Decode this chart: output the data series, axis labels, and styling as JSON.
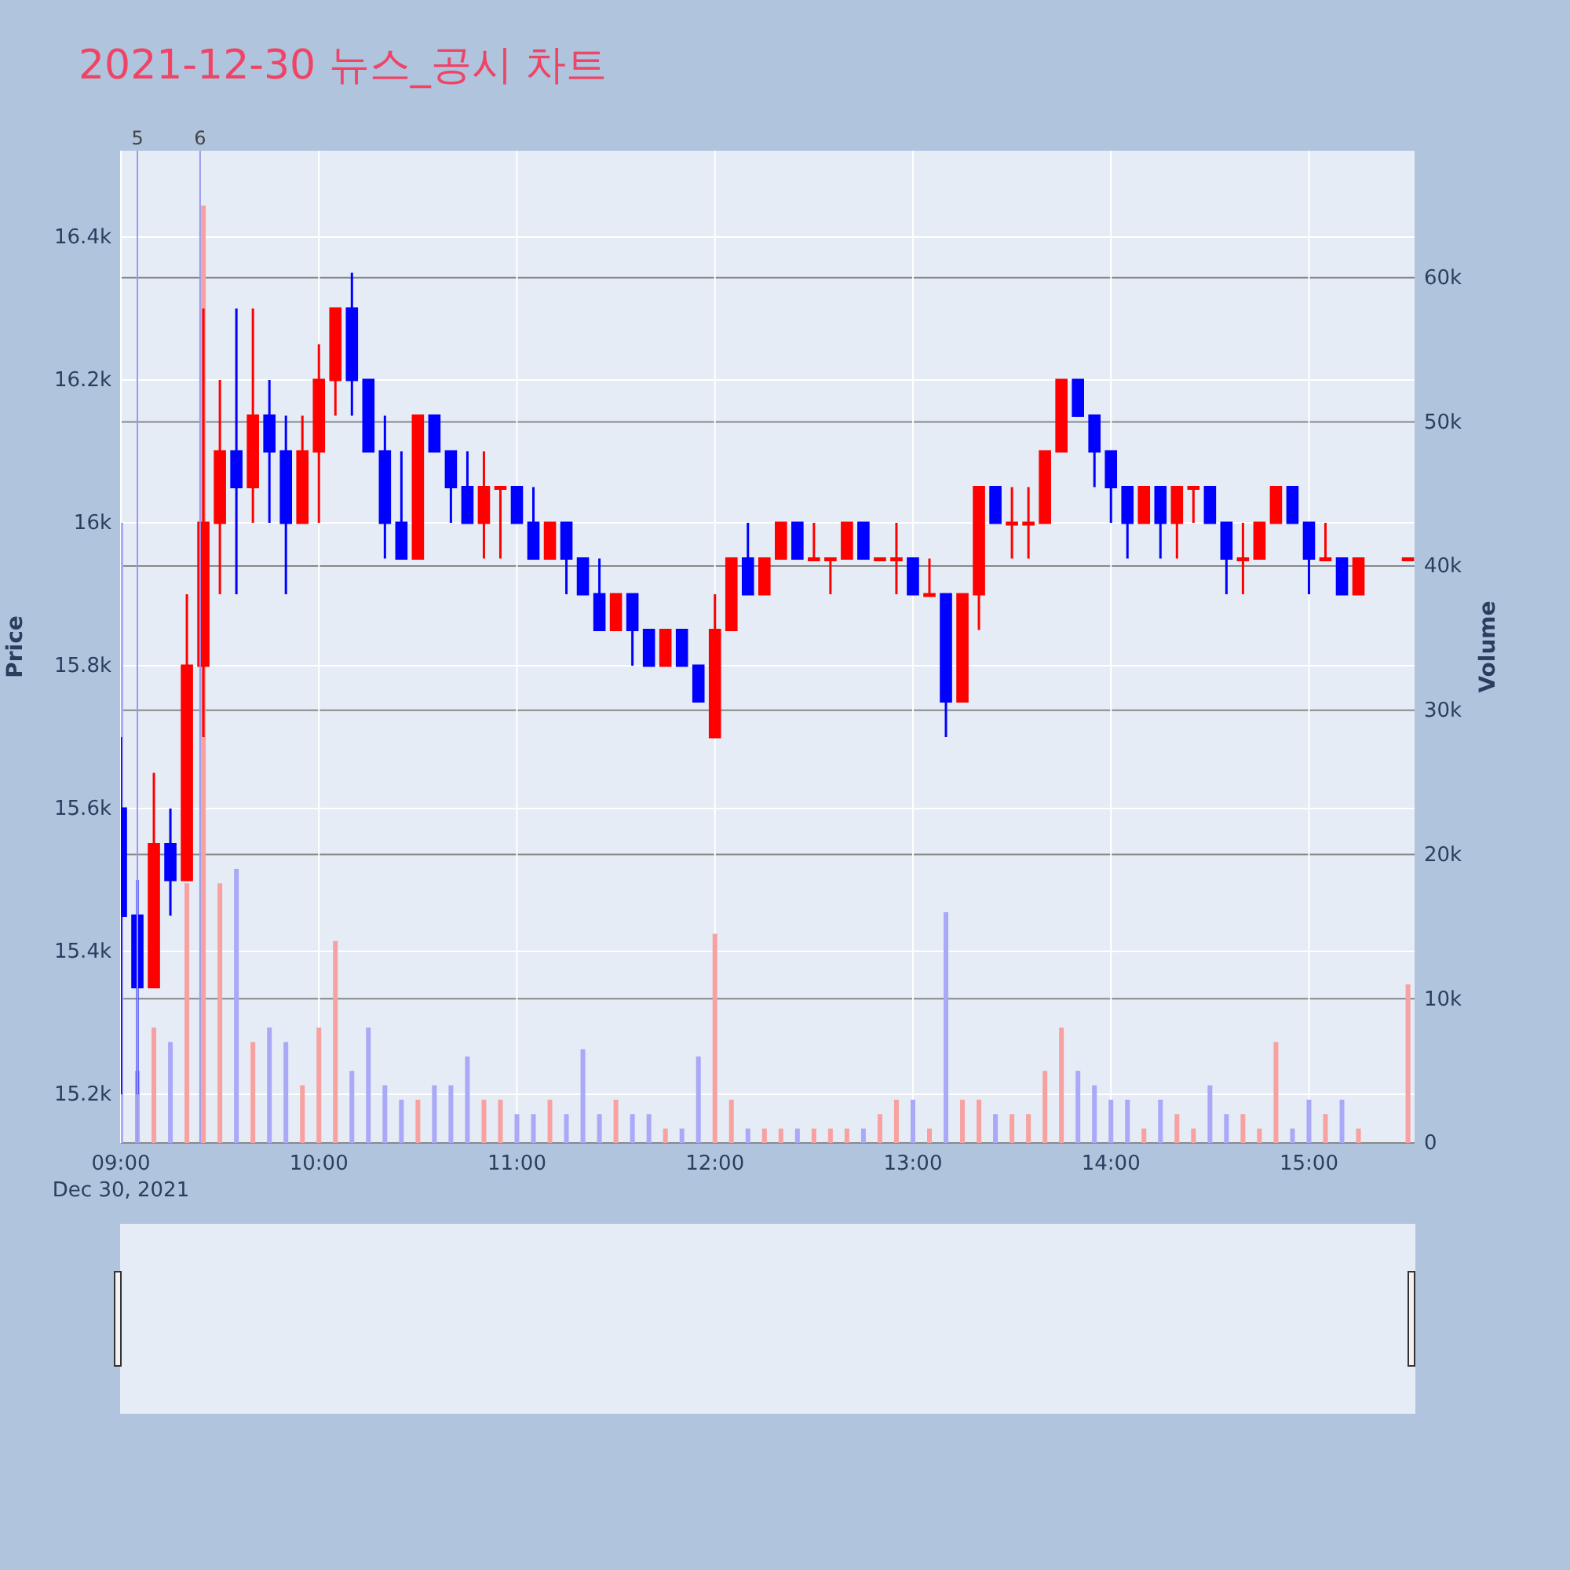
{
  "chart_data": {
    "type": "candlestick",
    "title": "2021-12-30 뉴스_공시 차트",
    "ylabel": "Price",
    "y2label": "Volume",
    "annotations": [
      "Dec 30, 2021"
    ],
    "xlim": [
      "2021-12-30T09:00",
      "2021-12-30T15:32"
    ],
    "xticks": [
      {
        "value": "2021-12-30T09:00",
        "label": "09:00"
      },
      {
        "value": "2021-12-30T10:00",
        "label": "10:00"
      },
      {
        "value": "2021-12-30T11:00",
        "label": "11:00"
      },
      {
        "value": "2021-12-30T12:00",
        "label": "12:00"
      },
      {
        "value": "2021-12-30T13:00",
        "label": "13:00"
      },
      {
        "value": "2021-12-30T14:00",
        "label": "14:00"
      },
      {
        "value": "2021-12-30T15:00",
        "label": "15:00"
      }
    ],
    "ylim": [
      15132,
      16521
    ],
    "yticks": [
      {
        "value": 15200,
        "label": "15.2k"
      },
      {
        "value": 15400,
        "label": "15.4k"
      },
      {
        "value": 15600,
        "label": "15.6k"
      },
      {
        "value": 15800,
        "label": "15.8k"
      },
      {
        "value": 16000,
        "label": "16k"
      },
      {
        "value": 16200,
        "label": "16.2k"
      },
      {
        "value": 16400,
        "label": "16.4k"
      }
    ],
    "y2lim": [
      0,
      68800
    ],
    "y2ticks": [
      0,
      {
        "value": 10000,
        "label": "10k"
      },
      {
        "value": 20000,
        "label": "20k"
      },
      {
        "value": 30000,
        "label": "30k"
      },
      {
        "value": 40000,
        "label": "40k"
      },
      {
        "value": 50000,
        "label": "50k"
      },
      {
        "value": 60000,
        "label": "60k"
      }
    ],
    "grid": true,
    "ref_lines": [
      {
        "axis": "x",
        "value": "2021-12-30T09:05",
        "label": "5",
        "color": "#9999ee"
      },
      {
        "axis": "x",
        "value": "2021-12-30T09:24",
        "label": "6",
        "color": "#9999ee"
      }
    ],
    "series": [
      {
        "type": "bar",
        "axis": "y2",
        "x": [
          "2021-12-30T09:00",
          "2021-12-30T09:05",
          "2021-12-30T09:10",
          "2021-12-30T09:15",
          "2021-12-30T09:20",
          "2021-12-30T09:25",
          "2021-12-30T09:30",
          "2021-12-30T09:35",
          "2021-12-30T09:40",
          "2021-12-30T09:45",
          "2021-12-30T09:50",
          "2021-12-30T09:55",
          "2021-12-30T10:00",
          "2021-12-30T10:05",
          "2021-12-30T10:10",
          "2021-12-30T10:15",
          "2021-12-30T10:20",
          "2021-12-30T10:25",
          "2021-12-30T10:30",
          "2021-12-30T10:35",
          "2021-12-30T10:40",
          "2021-12-30T10:45",
          "2021-12-30T10:50",
          "2021-12-30T10:55",
          "2021-12-30T11:00",
          "2021-12-30T11:05",
          "2021-12-30T11:10",
          "2021-12-30T11:15",
          "2021-12-30T11:20",
          "2021-12-30T11:25",
          "2021-12-30T11:30",
          "2021-12-30T11:35",
          "2021-12-30T11:40",
          "2021-12-30T11:45",
          "2021-12-30T11:50",
          "2021-12-30T11:55",
          "2021-12-30T12:00",
          "2021-12-30T12:05",
          "2021-12-30T12:10",
          "2021-12-30T12:15",
          "2021-12-30T12:20",
          "2021-12-30T12:25",
          "2021-12-30T12:30",
          "2021-12-30T12:35",
          "2021-12-30T12:40",
          "2021-12-30T12:45",
          "2021-12-30T12:50",
          "2021-12-30T12:55",
          "2021-12-30T13:00",
          "2021-12-30T13:05",
          "2021-12-30T13:10",
          "2021-12-30T13:15",
          "2021-12-30T13:20",
          "2021-12-30T13:25",
          "2021-12-30T13:30",
          "2021-12-30T13:35",
          "2021-12-30T13:40",
          "2021-12-30T13:45",
          "2021-12-30T13:50",
          "2021-12-30T13:55",
          "2021-12-30T14:00",
          "2021-12-30T14:05",
          "2021-12-30T14:10",
          "2021-12-30T14:15",
          "2021-12-30T14:20",
          "2021-12-30T14:25",
          "2021-12-30T14:30",
          "2021-12-30T14:35",
          "2021-12-30T14:40",
          "2021-12-30T14:45",
          "2021-12-30T14:50",
          "2021-12-30T14:55",
          "2021-12-30T15:00",
          "2021-12-30T15:05",
          "2021-12-30T15:10",
          "2021-12-30T15:15",
          "2021-12-30T15:30"
        ],
        "values": [
          43000,
          5000,
          8000,
          7000,
          18000,
          65000,
          18000,
          19000,
          7000,
          8000,
          7000,
          4000,
          8000,
          14000,
          5000,
          8000,
          4000,
          3000,
          3000,
          4000,
          4000,
          6000,
          3000,
          3000,
          2000,
          2000,
          3000,
          2000,
          6500,
          2000,
          3000,
          2000,
          2000,
          1000,
          1000,
          6000,
          14500,
          3000,
          1000,
          1000,
          1000,
          1000,
          1000,
          1000,
          1000,
          1000,
          2000,
          3000,
          3000,
          1000,
          16000,
          3000,
          3000,
          2000,
          2000,
          2000,
          5000,
          8000,
          5000,
          4000,
          3000,
          3000,
          1000,
          3000,
          2000,
          1000,
          4000,
          2000,
          2000,
          1000,
          7000,
          1000,
          3000,
          2000,
          3000,
          1000,
          11000
        ],
        "colors": [
          "#a9a9f7",
          "#a9a9f7",
          "#f7a1a1",
          "#a9a9f7",
          "#f7a1a1",
          "#f7a1a1",
          "#f7a1a1",
          "#a9a9f7",
          "#f7a1a1",
          "#a9a9f7",
          "#a9a9f7",
          "#f7a1a1",
          "#f7a1a1",
          "#f7a1a1",
          "#a9a9f7",
          "#a9a9f7",
          "#a9a9f7",
          "#a9a9f7",
          "#f7a1a1",
          "#a9a9f7",
          "#a9a9f7",
          "#a9a9f7",
          "#f7a1a1",
          "#f7a1a1",
          "#a9a9f7",
          "#a9a9f7",
          "#f7a1a1",
          "#a9a9f7",
          "#a9a9f7",
          "#a9a9f7",
          "#f7a1a1",
          "#a9a9f7",
          "#a9a9f7",
          "#f7a1a1",
          "#a9a9f7",
          "#a9a9f7",
          "#f7a1a1",
          "#f7a1a1",
          "#a9a9f7",
          "#f7a1a1",
          "#f7a1a1",
          "#a9a9f7",
          "#f7a1a1",
          "#f7a1a1",
          "#f7a1a1",
          "#a9a9f7",
          "#f7a1a1",
          "#f7a1a1",
          "#a9a9f7",
          "#f7a1a1",
          "#a9a9f7",
          "#f7a1a1",
          "#f7a1a1",
          "#a9a9f7",
          "#f7a1a1",
          "#f7a1a1",
          "#f7a1a1",
          "#f7a1a1",
          "#a9a9f7",
          "#a9a9f7",
          "#a9a9f7",
          "#a9a9f7",
          "#f7a1a1",
          "#a9a9f7",
          "#f7a1a1",
          "#f7a1a1",
          "#a9a9f7",
          "#a9a9f7",
          "#f7a1a1",
          "#f7a1a1",
          "#f7a1a1",
          "#a9a9f7",
          "#a9a9f7",
          "#f7a1a1",
          "#a9a9f7",
          "#f7a1a1",
          "#f7a1a1"
        ]
      },
      {
        "x": [
          "2021-12-30T09:00",
          "2021-12-30T09:05",
          "2021-12-30T09:10",
          "2021-12-30T09:15",
          "2021-12-30T09:20",
          "2021-12-30T09:25",
          "2021-12-30T09:30",
          "2021-12-30T09:35",
          "2021-12-30T09:40",
          "2021-12-30T09:45",
          "2021-12-30T09:50",
          "2021-12-30T09:55",
          "2021-12-30T10:00",
          "2021-12-30T10:05",
          "2021-12-30T10:10",
          "2021-12-30T10:15",
          "2021-12-30T10:20",
          "2021-12-30T10:25",
          "2021-12-30T10:30",
          "2021-12-30T10:35",
          "2021-12-30T10:40",
          "2021-12-30T10:45",
          "2021-12-30T10:50",
          "2021-12-30T10:55",
          "2021-12-30T11:00",
          "2021-12-30T11:05",
          "2021-12-30T11:10",
          "2021-12-30T11:15",
          "2021-12-30T11:20",
          "2021-12-30T11:25",
          "2021-12-30T11:30",
          "2021-12-30T11:35",
          "2021-12-30T11:40",
          "2021-12-30T11:45",
          "2021-12-30T11:50",
          "2021-12-30T11:55",
          "2021-12-30T12:00",
          "2021-12-30T12:05",
          "2021-12-30T12:10",
          "2021-12-30T12:15",
          "2021-12-30T12:20",
          "2021-12-30T12:25",
          "2021-12-30T12:30",
          "2021-12-30T12:35",
          "2021-12-30T12:40",
          "2021-12-30T12:45",
          "2021-12-30T12:50",
          "2021-12-30T12:55",
          "2021-12-30T13:00",
          "2021-12-30T13:05",
          "2021-12-30T13:10",
          "2021-12-30T13:15",
          "2021-12-30T13:20",
          "2021-12-30T13:25",
          "2021-12-30T13:30",
          "2021-12-30T13:35",
          "2021-12-30T13:40",
          "2021-12-30T13:45",
          "2021-12-30T13:50",
          "2021-12-30T13:55",
          "2021-12-30T14:00",
          "2021-12-30T14:05",
          "2021-12-30T14:10",
          "2021-12-30T14:15",
          "2021-12-30T14:20",
          "2021-12-30T14:25",
          "2021-12-30T14:30",
          "2021-12-30T14:35",
          "2021-12-30T14:40",
          "2021-12-30T14:45",
          "2021-12-30T14:50",
          "2021-12-30T14:55",
          "2021-12-30T15:00",
          "2021-12-30T15:05",
          "2021-12-30T15:10",
          "2021-12-30T15:15",
          "2021-12-30T15:30"
        ],
        "ohlc": [
          [
            15600,
            15700,
            15200,
            15450
          ],
          [
            15450,
            15500,
            15200,
            15350
          ],
          [
            15350,
            15650,
            15350,
            15550
          ],
          [
            15550,
            15600,
            15450,
            15500
          ],
          [
            15500,
            15900,
            15500,
            15800
          ],
          [
            15800,
            16300,
            15700,
            16000
          ],
          [
            16000,
            16200,
            15900,
            16100
          ],
          [
            16100,
            16300,
            15900,
            16050
          ],
          [
            16050,
            16300,
            16000,
            16150
          ],
          [
            16150,
            16200,
            16000,
            16100
          ],
          [
            16100,
            16150,
            15900,
            16000
          ],
          [
            16000,
            16150,
            16000,
            16100
          ],
          [
            16100,
            16250,
            16000,
            16200
          ],
          [
            16200,
            16300,
            16150,
            16300
          ],
          [
            16300,
            16350,
            16150,
            16200
          ],
          [
            16200,
            16200,
            16100,
            16100
          ],
          [
            16100,
            16150,
            15950,
            16000
          ],
          [
            16000,
            16100,
            15950,
            15950
          ],
          [
            15950,
            16150,
            15950,
            16150
          ],
          [
            16150,
            16150,
            16100,
            16100
          ],
          [
            16100,
            16100,
            16000,
            16050
          ],
          [
            16050,
            16100,
            16000,
            16000
          ],
          [
            16000,
            16100,
            15950,
            16050
          ],
          [
            16050,
            16050,
            15950,
            16050
          ],
          [
            16050,
            16050,
            16000,
            16000
          ],
          [
            16000,
            16050,
            15950,
            15950
          ],
          [
            15950,
            16000,
            15950,
            16000
          ],
          [
            16000,
            16000,
            15900,
            15950
          ],
          [
            15950,
            15950,
            15900,
            15900
          ],
          [
            15900,
            15950,
            15850,
            15850
          ],
          [
            15850,
            15900,
            15850,
            15900
          ],
          [
            15900,
            15900,
            15800,
            15850
          ],
          [
            15850,
            15850,
            15800,
            15800
          ],
          [
            15800,
            15850,
            15800,
            15850
          ],
          [
            15850,
            15850,
            15800,
            15800
          ],
          [
            15800,
            15800,
            15750,
            15750
          ],
          [
            15700,
            15900,
            15700,
            15850
          ],
          [
            15850,
            15950,
            15850,
            15950
          ],
          [
            15950,
            16000,
            15900,
            15900
          ],
          [
            15900,
            15950,
            15900,
            15950
          ],
          [
            15950,
            16000,
            15950,
            16000
          ],
          [
            16000,
            16000,
            15950,
            15950
          ],
          [
            15950,
            16000,
            15950,
            15950
          ],
          [
            15950,
            15950,
            15900,
            15950
          ],
          [
            15950,
            16000,
            15950,
            16000
          ],
          [
            16000,
            16000,
            15950,
            15950
          ],
          [
            15950,
            15950,
            15950,
            15950
          ],
          [
            15950,
            16000,
            15900,
            15950
          ],
          [
            15950,
            15950,
            15900,
            15900
          ],
          [
            15900,
            15950,
            15900,
            15900
          ],
          [
            15900,
            15900,
            15700,
            15750
          ],
          [
            15750,
            15900,
            15750,
            15900
          ],
          [
            15900,
            16050,
            15850,
            16050
          ],
          [
            16050,
            16050,
            16000,
            16000
          ],
          [
            16000,
            16050,
            15950,
            16000
          ],
          [
            16000,
            16050,
            15950,
            16000
          ],
          [
            16000,
            16100,
            16000,
            16100
          ],
          [
            16100,
            16200,
            16100,
            16200
          ],
          [
            16200,
            16200,
            16150,
            16150
          ],
          [
            16150,
            16150,
            16050,
            16100
          ],
          [
            16100,
            16100,
            16000,
            16050
          ],
          [
            16050,
            16050,
            15950,
            16000
          ],
          [
            16000,
            16050,
            16000,
            16050
          ],
          [
            16050,
            16050,
            15950,
            16000
          ],
          [
            16000,
            16050,
            15950,
            16050
          ],
          [
            16050,
            16050,
            16000,
            16050
          ],
          [
            16050,
            16050,
            16000,
            16000
          ],
          [
            16000,
            16000,
            15900,
            15950
          ],
          [
            15950,
            16000,
            15900,
            15950
          ],
          [
            15950,
            16000,
            15950,
            16000
          ],
          [
            16000,
            16050,
            16000,
            16050
          ],
          [
            16050,
            16050,
            16000,
            16000
          ],
          [
            16000,
            16000,
            15900,
            15950
          ],
          [
            15950,
            16000,
            15950,
            15950
          ],
          [
            15950,
            15950,
            15900,
            15900
          ],
          [
            15900,
            15950,
            15900,
            15950
          ],
          [
            15950,
            15950,
            15950,
            15950
          ]
        ],
        "colors": [
          "#0000ff",
          "#0000ff",
          "#ff0000",
          "#0000ff",
          "#ff0000",
          "#ff0000",
          "#ff0000",
          "#0000ff",
          "#ff0000",
          "#0000ff",
          "#0000ff",
          "#ff0000",
          "#ff0000",
          "#ff0000",
          "#0000ff",
          "#0000ff",
          "#0000ff",
          "#0000ff",
          "#ff0000",
          "#0000ff",
          "#0000ff",
          "#0000ff",
          "#ff0000",
          "#ff0000",
          "#0000ff",
          "#0000ff",
          "#ff0000",
          "#0000ff",
          "#0000ff",
          "#0000ff",
          "#ff0000",
          "#0000ff",
          "#0000ff",
          "#ff0000",
          "#0000ff",
          "#0000ff",
          "#ff0000",
          "#ff0000",
          "#0000ff",
          "#ff0000",
          "#ff0000",
          "#0000ff",
          "#ff0000",
          "#ff0000",
          "#ff0000",
          "#0000ff",
          "#ff0000",
          "#ff0000",
          "#0000ff",
          "#ff0000",
          "#0000ff",
          "#ff0000",
          "#ff0000",
          "#0000ff",
          "#ff0000",
          "#ff0000",
          "#ff0000",
          "#ff0000",
          "#0000ff",
          "#0000ff",
          "#0000ff",
          "#0000ff",
          "#ff0000",
          "#0000ff",
          "#ff0000",
          "#ff0000",
          "#0000ff",
          "#0000ff",
          "#ff0000",
          "#ff0000",
          "#ff0000",
          "#0000ff",
          "#0000ff",
          "#ff0000",
          "#0000ff",
          "#ff0000",
          "#ff0000"
        ]
      }
    ]
  }
}
